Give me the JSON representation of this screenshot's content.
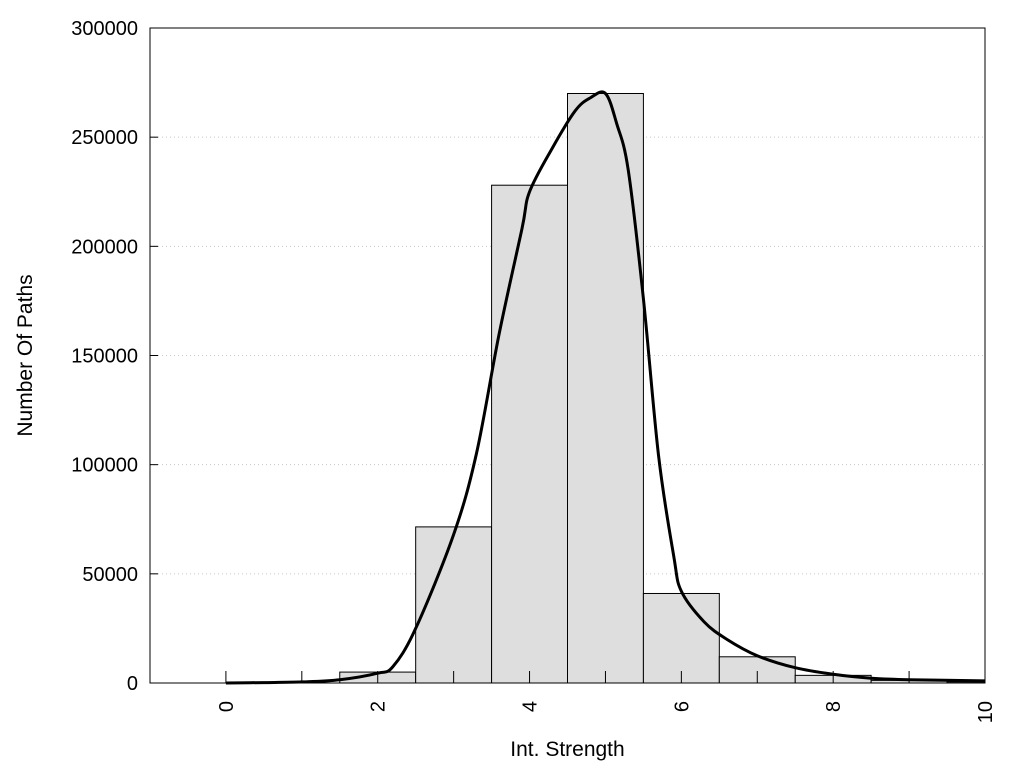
{
  "chart_data": {
    "type": "bar",
    "title": "",
    "xlabel": "Int. Strength",
    "ylabel": "Number Of Paths",
    "xlim": [
      -1,
      10
    ],
    "ylim": [
      0,
      300000
    ],
    "x_ticks": [
      0,
      2,
      4,
      6,
      8,
      10
    ],
    "x_tick_labels": [
      "0",
      "2",
      "4",
      "6",
      "8",
      "10"
    ],
    "y_ticks": [
      0,
      50000,
      100000,
      150000,
      200000,
      250000,
      300000
    ],
    "y_tick_labels": [
      "0",
      "50000",
      "100000",
      "150000",
      "200000",
      "250000",
      "300000"
    ],
    "grid": "horizontal dotted",
    "legend": "none",
    "series": [
      {
        "kind": "histogram",
        "bin_width": 1,
        "bins": [
          {
            "center": 0,
            "value": 0
          },
          {
            "center": 1,
            "value": 0
          },
          {
            "center": 2,
            "value": 5000
          },
          {
            "center": 3,
            "value": 71500
          },
          {
            "center": 4,
            "value": 228000
          },
          {
            "center": 5,
            "value": 270000
          },
          {
            "center": 6,
            "value": 41000
          },
          {
            "center": 7,
            "value": 12000
          },
          {
            "center": 8,
            "value": 3500
          },
          {
            "center": 9,
            "value": 1200
          },
          {
            "center": 10,
            "value": 500
          }
        ]
      },
      {
        "kind": "fit-curve",
        "x": [
          0,
          0.5,
          1,
          1.5,
          2,
          2.2,
          2.5,
          3,
          3.3,
          3.6,
          3.9,
          4,
          4.3,
          4.6,
          4.8,
          5,
          5.15,
          5.3,
          5.5,
          5.7,
          5.9,
          6,
          6.3,
          6.6,
          7,
          7.5,
          8,
          8.5,
          9,
          10
        ],
        "y": [
          0,
          200,
          500,
          1500,
          4500,
          7500,
          25000,
          68000,
          105000,
          160000,
          208000,
          225000,
          245000,
          262000,
          268000,
          270000,
          256000,
          235000,
          176000,
          104000,
          58000,
          42000,
          28000,
          20000,
          12500,
          7000,
          4000,
          2200,
          1500,
          1000
        ]
      }
    ],
    "colors": {
      "bar_fill": "#dedede",
      "bar_stroke": "#000000",
      "curve": "#000000",
      "grid": "#c8c8c8"
    }
  }
}
